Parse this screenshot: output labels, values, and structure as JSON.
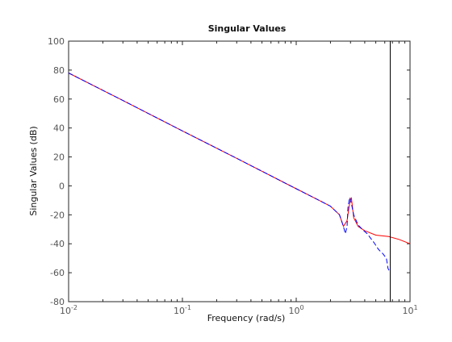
{
  "chart_data": {
    "type": "line",
    "title": "Singular Values",
    "xlabel": "Frequency (rad/s)",
    "ylabel": "Singular Values (dB)",
    "xscale": "log",
    "xlim": [
      0.01,
      10
    ],
    "ylim": [
      -80,
      100
    ],
    "grid": false,
    "yticks": [
      100,
      80,
      60,
      40,
      20,
      0,
      -20,
      -40,
      -60,
      -80
    ],
    "ytick_labels": [
      "100",
      "80",
      "60",
      "40",
      "20",
      "0",
      "-20",
      "-40",
      "-60",
      "-80"
    ],
    "xticks": [
      {
        "base": "10",
        "exp": "-2",
        "value": 0.01
      },
      {
        "base": "10",
        "exp": "-1",
        "value": 0.1
      },
      {
        "base": "10",
        "exp": "0",
        "value": 1
      },
      {
        "base": "10",
        "exp": "1",
        "value": 10
      }
    ],
    "series": [
      {
        "color": "#ff0000",
        "style": "solid",
        "x": [
          0.01,
          0.03,
          0.1,
          0.3,
          1,
          1.5,
          2,
          2.4,
          2.6,
          2.8,
          2.95,
          3.05,
          3.2,
          3.5,
          4,
          5,
          6.5,
          8,
          10
        ],
        "y": [
          78,
          59,
          38,
          19,
          -2,
          -9,
          -14,
          -20,
          -28,
          -24,
          -12,
          -8,
          -22,
          -28,
          -31,
          -34,
          -35,
          -37,
          -40
        ]
      },
      {
        "color": "#0000ff",
        "style": "dashed",
        "x": [
          0.01,
          0.03,
          0.1,
          0.3,
          1,
          1.5,
          2,
          2.4,
          2.6,
          2.7,
          2.8,
          2.85,
          2.95,
          3.05,
          3.2,
          3.5,
          3.8,
          4.2,
          4.8,
          5.3,
          5.8,
          6.2,
          6.4,
          6.6
        ],
        "y": [
          78,
          59,
          38,
          19,
          -2,
          -9,
          -14,
          -20,
          -28,
          -33,
          -28,
          -15,
          -8,
          -12,
          -20,
          -27,
          -30,
          -33,
          -39,
          -44,
          -47,
          -50,
          -57,
          -59
        ]
      }
    ],
    "vline": {
      "x": 6.7,
      "color": "#000000"
    }
  }
}
